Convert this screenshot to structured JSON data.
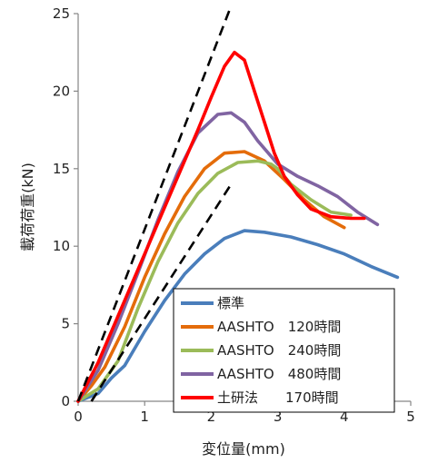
{
  "chart_data": {
    "type": "line",
    "xlabel": "変位量(mm)",
    "ylabel": "載荷荷重(kN)",
    "xlim": [
      0,
      5
    ],
    "ylim": [
      0,
      25
    ],
    "xticks": [
      "0",
      "1",
      "2",
      "3",
      "4",
      "5"
    ],
    "yticks": [
      "0",
      "5",
      "10",
      "15",
      "20",
      "25"
    ],
    "grid": false,
    "legend_position": "bottom-right",
    "series": [
      {
        "name": "標準",
        "color": "#4a7ebb",
        "x": [
          0,
          0.3,
          0.5,
          0.7,
          1.0,
          1.3,
          1.6,
          1.9,
          2.2,
          2.5,
          2.8,
          3.2,
          3.6,
          4.0,
          4.4,
          4.8
        ],
        "y": [
          0,
          0.5,
          1.5,
          2.3,
          4.5,
          6.5,
          8.2,
          9.5,
          10.5,
          11.0,
          10.9,
          10.6,
          10.1,
          9.5,
          8.7,
          8.0
        ]
      },
      {
        "name": "AASHTO　120時間",
        "color": "#e46c0a",
        "x": [
          0,
          0.2,
          0.4,
          0.7,
          1.0,
          1.3,
          1.6,
          1.9,
          2.2,
          2.5,
          2.8,
          3.1,
          3.4,
          3.7,
          4.0
        ],
        "y": [
          0,
          1.0,
          2.2,
          4.8,
          8.0,
          10.8,
          13.2,
          15.0,
          16.0,
          16.1,
          15.5,
          14.3,
          13.0,
          11.9,
          11.2
        ]
      },
      {
        "name": "AASHTO　240時間",
        "color": "#9bbb59",
        "x": [
          0,
          0.3,
          0.6,
          0.9,
          1.2,
          1.5,
          1.8,
          2.1,
          2.4,
          2.7,
          2.9,
          3.0,
          3.2,
          3.5,
          3.8,
          4.1
        ],
        "y": [
          0,
          0.8,
          2.6,
          6.0,
          9.0,
          11.5,
          13.4,
          14.7,
          15.4,
          15.5,
          15.3,
          15.0,
          14.0,
          13.0,
          12.2,
          12.0
        ]
      },
      {
        "name": "AASHTO　480時間",
        "color": "#8064a2",
        "x": [
          0,
          0.3,
          0.6,
          0.9,
          1.2,
          1.5,
          1.8,
          2.1,
          2.3,
          2.5,
          2.7,
          3.0,
          3.3,
          3.6,
          3.9,
          4.2,
          4.5
        ],
        "y": [
          0,
          2.0,
          5.0,
          8.3,
          11.7,
          14.8,
          17.3,
          18.5,
          18.6,
          18.0,
          16.8,
          15.3,
          14.5,
          13.9,
          13.2,
          12.2,
          11.4
        ]
      },
      {
        "name": "土研法　　170時間",
        "color": "#ff0000",
        "x": [
          0,
          0.3,
          0.6,
          0.9,
          1.2,
          1.5,
          1.8,
          2.0,
          2.2,
          2.35,
          2.5,
          2.65,
          2.8,
          2.95,
          3.1,
          3.3,
          3.5,
          3.8,
          4.1,
          4.3
        ],
        "y": [
          0,
          2.5,
          5.5,
          8.5,
          11.5,
          14.5,
          17.5,
          19.6,
          21.6,
          22.5,
          22.0,
          20.0,
          18.0,
          16.0,
          14.5,
          13.3,
          12.4,
          11.9,
          11.8,
          11.8
        ]
      }
    ],
    "reference_lines": [
      {
        "name": "dashed-line-upper",
        "style": "dashed",
        "color": "#000000",
        "x": [
          0,
          2.3
        ],
        "y": [
          0,
          25.5
        ]
      },
      {
        "name": "dashed-line-lower",
        "style": "dashed",
        "color": "#000000",
        "x": [
          0.2,
          2.3
        ],
        "y": [
          0,
          14.0
        ]
      }
    ]
  }
}
